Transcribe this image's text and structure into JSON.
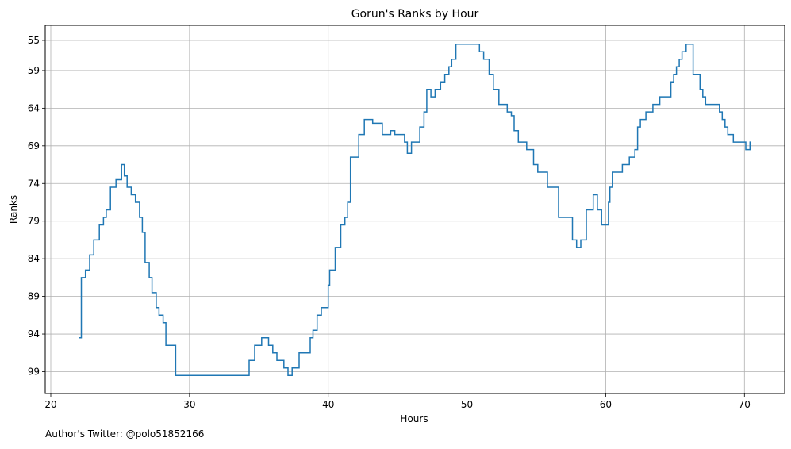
{
  "chart_data": {
    "type": "line",
    "drawstyle": "steps",
    "title": "Gorun's Ranks by Hour",
    "xlabel": "Hours",
    "ylabel": "Ranks",
    "footer": "Author's Twitter: @polo51852166",
    "xlim": [
      19.6,
      72.9
    ],
    "ylim": [
      101.9,
      53.0
    ],
    "y_inverted": true,
    "grid": true,
    "line_color": "#1f77b4",
    "x_ticks": [
      20,
      30,
      40,
      50,
      60,
      70
    ],
    "y_ticks": [
      55,
      59,
      64,
      69,
      74,
      79,
      84,
      89,
      94,
      99
    ],
    "series": [
      {
        "x": [
          22.0,
          22.2,
          22.5,
          22.8,
          23.1,
          23.5,
          23.8,
          24.0,
          24.3,
          24.7,
          25.1,
          25.3,
          25.5,
          25.8,
          26.1,
          26.4,
          26.6,
          26.8,
          27.1,
          27.3,
          27.6,
          27.8,
          28.1,
          28.3,
          29.0,
          30.0,
          31.0,
          32.0,
          33.0,
          34.0,
          34.3,
          34.7,
          35.2,
          35.7,
          36.0,
          36.3,
          36.8,
          37.1,
          37.4,
          37.9,
          38.7,
          38.9,
          39.2,
          39.5,
          40.0,
          40.1,
          40.5,
          40.9,
          41.2,
          41.4,
          41.6,
          42.2,
          42.6,
          43.2,
          43.9,
          44.5,
          44.8,
          45.5,
          45.7,
          46.0,
          46.6,
          46.9,
          47.1,
          47.4,
          47.7,
          48.1,
          48.4,
          48.7,
          48.9,
          49.2,
          50.6,
          50.9,
          51.2,
          51.6,
          51.9,
          52.3,
          52.9,
          53.2,
          53.4,
          53.7,
          54.3,
          54.8,
          55.1,
          55.8,
          56.6,
          57.6,
          57.9,
          58.2,
          58.6,
          59.1,
          59.4,
          59.7,
          60.2,
          60.3,
          60.5,
          61.2,
          61.7,
          62.1,
          62.3,
          62.5,
          62.9,
          63.4,
          63.9,
          64.7,
          64.9,
          65.1,
          65.3,
          65.5,
          65.8,
          66.3,
          66.8,
          67.0,
          67.2,
          68.2,
          68.4,
          68.6,
          68.8,
          69.2,
          69.7,
          70.1,
          70.4,
          70.5
        ],
        "y": [
          94.5,
          86.5,
          85.5,
          83.5,
          81.5,
          79.5,
          78.5,
          77.5,
          74.5,
          73.5,
          71.5,
          73.0,
          74.5,
          75.5,
          76.5,
          78.5,
          80.5,
          84.5,
          86.5,
          88.5,
          90.5,
          91.5,
          92.5,
          95.5,
          99.5,
          99.5,
          99.5,
          99.5,
          99.5,
          99.5,
          97.5,
          95.5,
          94.5,
          95.5,
          96.5,
          97.5,
          98.5,
          99.5,
          98.5,
          96.5,
          94.5,
          93.5,
          91.5,
          90.5,
          87.5,
          85.5,
          82.5,
          79.5,
          78.5,
          76.5,
          70.5,
          67.5,
          65.5,
          66.0,
          67.5,
          67.0,
          67.5,
          68.5,
          70.0,
          68.5,
          66.5,
          64.5,
          61.5,
          62.5,
          61.5,
          60.5,
          59.5,
          58.5,
          57.5,
          55.5,
          55.5,
          56.5,
          57.5,
          59.5,
          61.5,
          63.5,
          64.5,
          65.0,
          67.0,
          68.5,
          69.5,
          71.5,
          72.5,
          74.5,
          78.5,
          81.5,
          82.5,
          81.5,
          77.5,
          75.5,
          77.5,
          79.5,
          76.5,
          74.5,
          72.5,
          71.5,
          70.5,
          69.5,
          66.5,
          65.5,
          64.5,
          63.5,
          62.5,
          60.5,
          59.5,
          58.5,
          57.5,
          56.5,
          55.5,
          59.5,
          61.5,
          62.5,
          63.5,
          64.5,
          65.5,
          66.5,
          67.5,
          68.5,
          68.5,
          69.5,
          68.5,
          68.5
        ]
      }
    ]
  }
}
